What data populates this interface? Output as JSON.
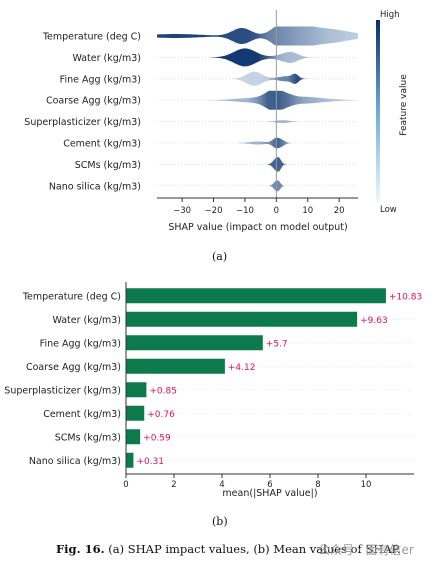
{
  "panel_a_label": "(a)",
  "panel_b_label": "(b)",
  "caption_prefix": "Fig. 16.",
  "caption_text": "(a) SHAP impact values, (b) Mean values of SHAP.",
  "watermark": "公众号 · 面有信er",
  "colors": {
    "accent_bar": "#0d7a4e",
    "bar_label": "#e0115f",
    "colorbar_high": "#08306b",
    "colorbar_low": "#f0f6fd"
  },
  "chart_data": [
    {
      "type": "violin",
      "features": [
        "Temperature (deg C)",
        "Water (kg/m3)",
        "Fine Agg (kg/m3)",
        "Coarse Agg (kg/m3)",
        "Superplasticizer (kg/m3)",
        "Cement (kg/m3)",
        "SCMs (kg/m3)",
        "Nano silica (kg/m3)"
      ],
      "xlabel": "SHAP value (impact on model output)",
      "xticks": [
        -30,
        -20,
        -10,
        0,
        10,
        20
      ],
      "xlim": [
        -38,
        26
      ],
      "colorbar": {
        "label": "Feature value",
        "high": "High",
        "low": "Low"
      },
      "violins": [
        {
          "lobes": [
            {
              "c": -32,
              "w": 8,
              "h": 2.0,
              "v": 0.9
            },
            {
              "c": -11,
              "w": 3,
              "h": 8,
              "v": 0.85
            },
            {
              "c": 1,
              "w": 3,
              "h": 7,
              "v": 0.6
            },
            {
              "c": 6,
              "w": 4,
              "h": 10,
              "v": 0.45
            },
            {
              "c": 14,
              "w": 6,
              "h": 6,
              "v": 0.3
            },
            {
              "c": 22,
              "w": 6,
              "h": 2.5,
              "v": 0.12
            }
          ]
        },
        {
          "lobes": [
            {
              "c": -10,
              "w": 3.5,
              "h": 9,
              "v": 0.95
            },
            {
              "c": 3,
              "w": 3,
              "h": 3,
              "v": 0.35
            },
            {
              "c": 5,
              "w": 2,
              "h": 3,
              "v": 0.2
            }
          ]
        },
        {
          "lobes": [
            {
              "c": -7,
              "w": 2.5,
              "h": 7,
              "v": 0.15
            },
            {
              "c": 3,
              "w": 2.5,
              "h": 2.5,
              "v": 0.55
            },
            {
              "c": 6,
              "w": 1,
              "h": 4,
              "v": 0.95
            }
          ]
        },
        {
          "lobes": [
            {
              "c": -6,
              "w": 6,
              "h": 2.5,
              "v": 0.3
            },
            {
              "c": -1,
              "w": 2.5,
              "h": 8,
              "v": 0.9
            },
            {
              "c": 3,
              "w": 2.5,
              "h": 4,
              "v": 0.7
            },
            {
              "c": 9,
              "w": 4,
              "h": 2.5,
              "v": 0.4
            },
            {
              "c": 15,
              "w": 5,
              "h": 1.2,
              "v": 0.2
            }
          ]
        },
        {
          "lobes": [
            {
              "c": 2,
              "w": 2,
              "h": 1.5,
              "v": 0.3
            }
          ]
        },
        {
          "lobes": [
            {
              "c": -6,
              "w": 2.5,
              "h": 1.5,
              "v": 0.3
            },
            {
              "c": 0,
              "w": 1.2,
              "h": 5,
              "v": 0.8
            },
            {
              "c": 2,
              "w": 1,
              "h": 2,
              "v": 0.4
            }
          ]
        },
        {
          "lobes": [
            {
              "c": 0,
              "w": 1.0,
              "h": 6,
              "v": 0.7
            },
            {
              "c": 1,
              "w": 0.6,
              "h": 3,
              "v": 0.9
            }
          ]
        },
        {
          "lobes": [
            {
              "c": 0,
              "w": 0.8,
              "h": 5,
              "v": 0.5
            },
            {
              "c": 1,
              "w": 0.5,
              "h": 2,
              "v": 0.7
            }
          ]
        }
      ]
    },
    {
      "type": "bar",
      "orientation": "horizontal",
      "categories": [
        "Temperature (deg C)",
        "Water (kg/m3)",
        "Fine Agg (kg/m3)",
        "Coarse Agg (kg/m3)",
        "Superplasticizer (kg/m3)",
        "Cement (kg/m3)",
        "SCMs (kg/m3)",
        "Nano silica (kg/m3)"
      ],
      "values": [
        10.83,
        9.63,
        5.7,
        4.12,
        0.85,
        0.76,
        0.59,
        0.31
      ],
      "labels": [
        "+10.83",
        "+9.63",
        "+5.7",
        "+4.12",
        "+0.85",
        "+0.76",
        "+0.59",
        "+0.31"
      ],
      "xlabel": "mean(|SHAP value|)",
      "xticks": [
        0,
        2,
        4,
        6,
        8,
        10
      ],
      "xlim": [
        0,
        12
      ]
    }
  ]
}
